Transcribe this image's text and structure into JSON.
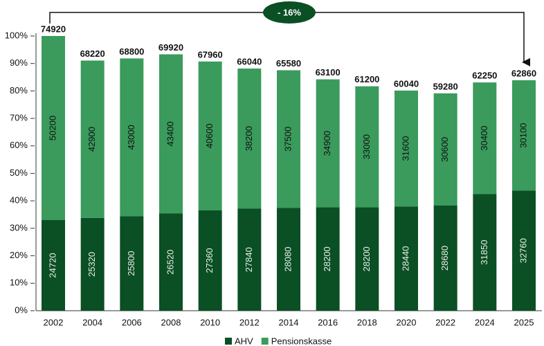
{
  "chart_data": {
    "type": "stacked_bar",
    "categories": [
      "2002",
      "2004",
      "2006",
      "2008",
      "2010",
      "2012",
      "2014",
      "2016",
      "2018",
      "2020",
      "2022",
      "2024",
      "2025"
    ],
    "series": [
      {
        "name": "AHV",
        "color": "#0b4f24",
        "values": [
          24720,
          25320,
          25800,
          26520,
          27360,
          27840,
          28080,
          28200,
          28200,
          28440,
          28680,
          31850,
          32760
        ]
      },
      {
        "name": "Pensionskasse",
        "color": "#3a9b5c",
        "values": [
          50200,
          42900,
          43000,
          43400,
          40600,
          38200,
          37500,
          34900,
          33000,
          31600,
          30600,
          30400,
          30100
        ]
      }
    ],
    "totals": [
      74920,
      68220,
      68800,
      69920,
      67960,
      66040,
      65580,
      63100,
      61200,
      60040,
      59280,
      62250,
      62860
    ],
    "annotation": "- 16%",
    "ylim": [
      0,
      74920
    ],
    "yticks": [
      {
        "value": 0,
        "label": "0%"
      },
      {
        "value": 7492,
        "label": "10%"
      },
      {
        "value": 14984,
        "label": "20%"
      },
      {
        "value": 22476,
        "label": "30%"
      },
      {
        "value": 29968,
        "label": "40%"
      },
      {
        "value": 37460,
        "label": "50%"
      },
      {
        "value": 44952,
        "label": "60%"
      },
      {
        "value": 52444,
        "label": "70%"
      },
      {
        "value": 59936,
        "label": "80%"
      },
      {
        "value": 67428,
        "label": "90%"
      },
      {
        "value": 74920,
        "label": "100%"
      }
    ],
    "legend": "bottom"
  }
}
